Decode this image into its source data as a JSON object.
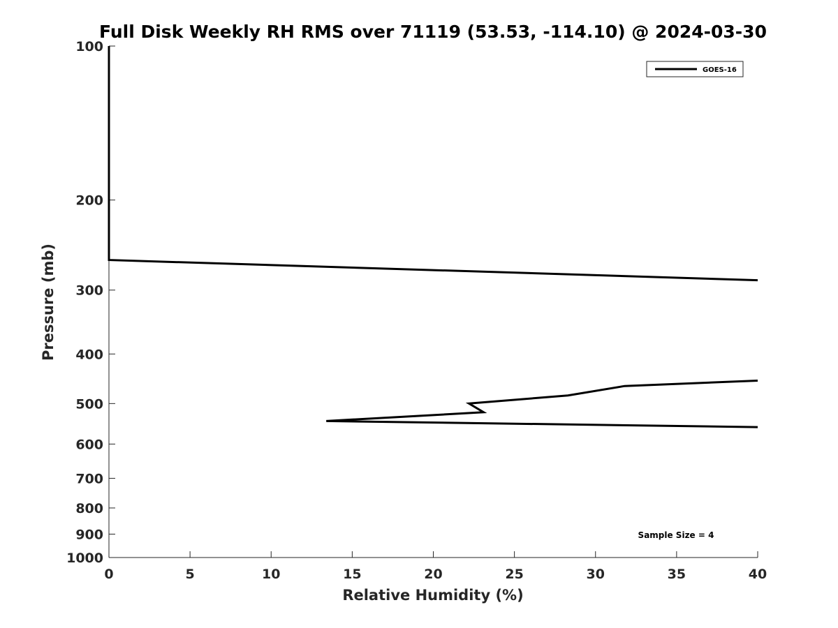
{
  "chart_data": {
    "type": "line",
    "title": "Full Disk Weekly RH RMS over 71119 (53.53, -114.10) @ 2024-03-30",
    "xlabel": "Relative Humidity (%)",
    "ylabel": "Pressure (mb)",
    "xlim": [
      0,
      40
    ],
    "ylim": [
      1000,
      100
    ],
    "y_scale": "log",
    "y_reversed": true,
    "grid": false,
    "legend_position": "top-right",
    "x_ticks": [
      "0",
      "5",
      "10",
      "15",
      "20",
      "25",
      "30",
      "35",
      "40"
    ],
    "y_ticks": [
      "100",
      "200",
      "300",
      "400",
      "500",
      "600",
      "700",
      "800",
      "900",
      "1000"
    ],
    "series": [
      {
        "name": "GOES-16",
        "color": "#000000",
        "points": [
          {
            "x": 0.0,
            "y": 100
          },
          {
            "x": 0.0,
            "y": 200
          },
          {
            "x": 0.0,
            "y": 262
          },
          {
            "x": 40.0,
            "y": 287
          },
          {
            "x": null,
            "y": null
          },
          {
            "x": 40.0,
            "y": 451
          },
          {
            "x": 31.8,
            "y": 462
          },
          {
            "x": 28.3,
            "y": 482
          },
          {
            "x": 22.2,
            "y": 500
          },
          {
            "x": 23.1,
            "y": 520
          },
          {
            "x": 13.4,
            "y": 541
          },
          {
            "x": 40.0,
            "y": 556
          }
        ]
      }
    ],
    "annotations": [
      "Sample Size = 4"
    ]
  }
}
